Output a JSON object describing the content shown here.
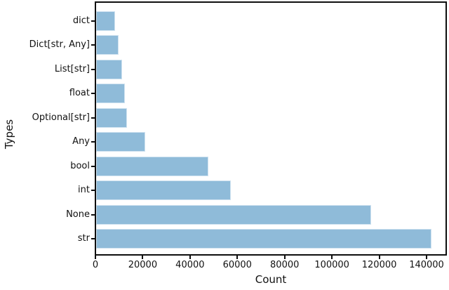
{
  "figure": {
    "background_color": "#ffffff",
    "axis_color": "#0e0e0e",
    "text_color": "#111111"
  },
  "chart_data": {
    "type": "bar",
    "orientation": "horizontal",
    "title": "",
    "xlabel": "Count",
    "ylabel": "Types",
    "categories": [
      "dict",
      "Dict[str, Any]",
      "List[str]",
      "float",
      "Optional[str]",
      "Any",
      "bool",
      "int",
      "None",
      "str"
    ],
    "values": [
      8400,
      9900,
      11400,
      12400,
      13300,
      21000,
      47700,
      57300,
      116700,
      142100
    ],
    "xticks": [
      0,
      20000,
      40000,
      60000,
      80000,
      100000,
      120000,
      140000
    ],
    "xtick_labels": [
      "0",
      "20000",
      "40000",
      "60000",
      "80000",
      "100000",
      "120000",
      "140000"
    ],
    "xlim": [
      0,
      148300
    ],
    "grid": false,
    "legend": null,
    "bar_color": "#8fbbd9",
    "bar_edge_color": "#cfe2f0"
  }
}
